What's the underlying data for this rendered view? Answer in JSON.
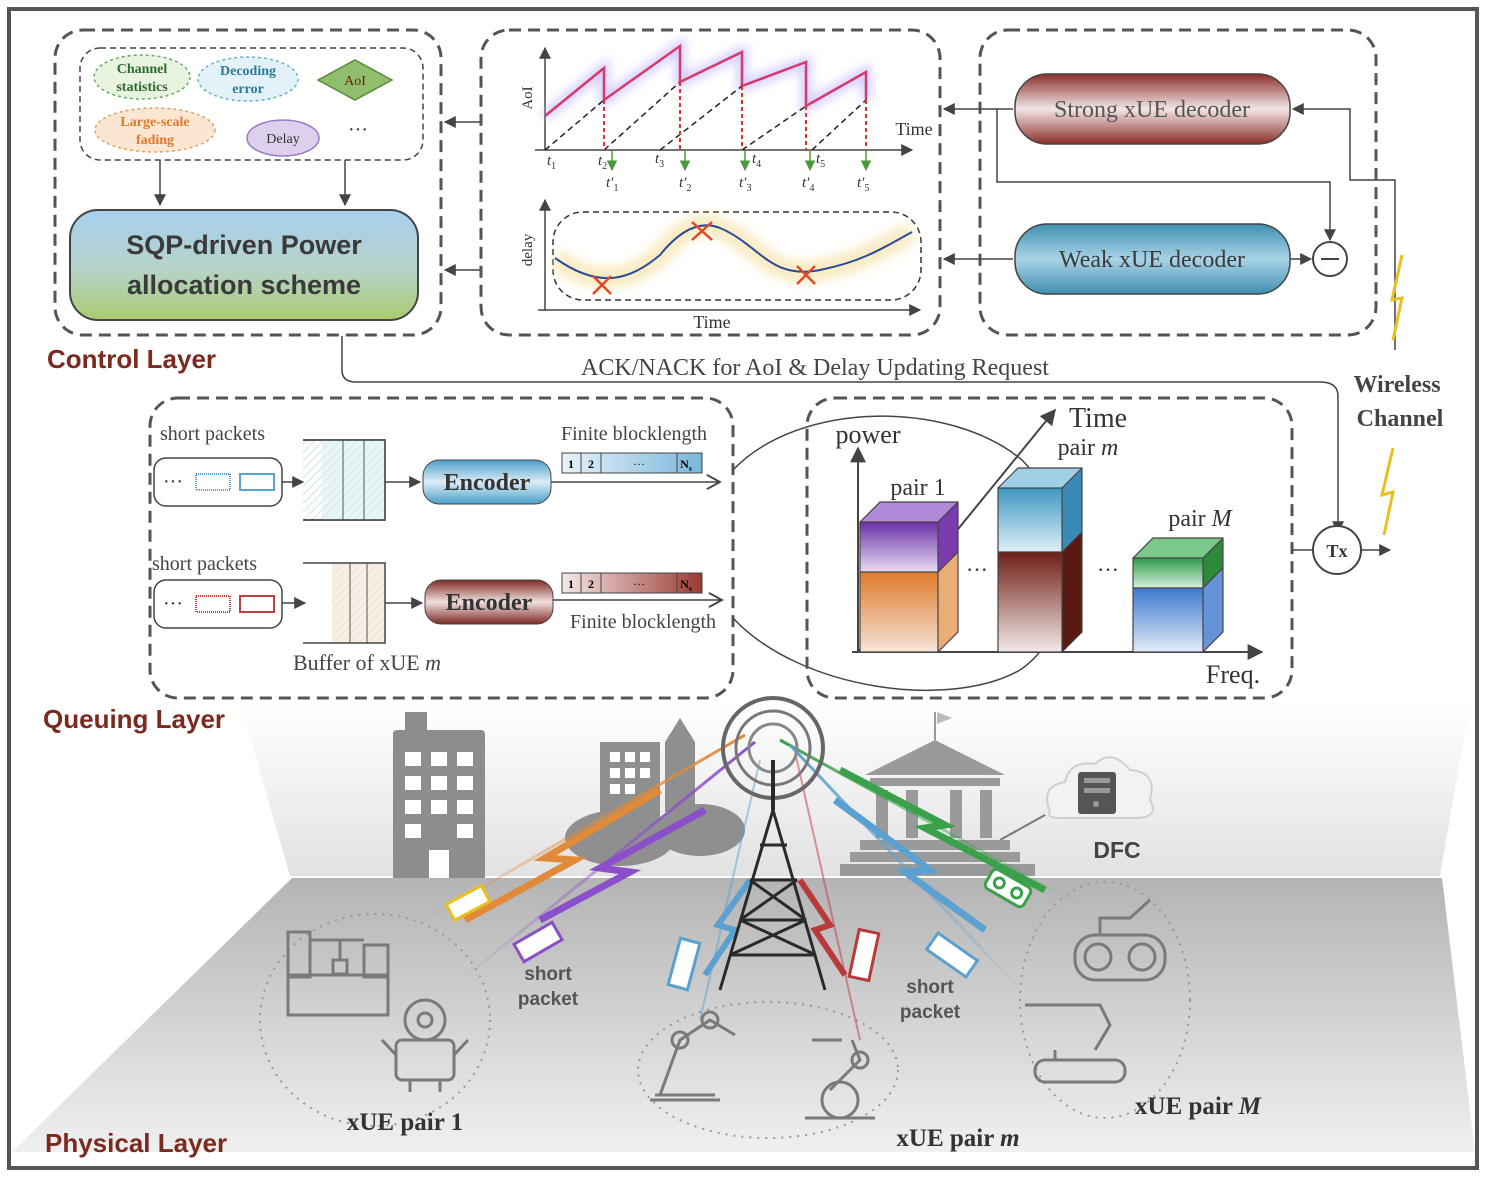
{
  "layers": {
    "control": "Control Layer",
    "queuing": "Queuing Layer",
    "physical": "Physical Layer"
  },
  "control": {
    "factors": {
      "channel_statistics": [
        "Channel",
        "statistics"
      ],
      "decoding_error": [
        "Decoding",
        "error"
      ],
      "aoi": "AoI",
      "large_scale_fading": [
        "Large-scale",
        "fading"
      ],
      "delay": "Delay",
      "ellipsis": "···"
    },
    "sqp_scheme": [
      "SQP-driven Power",
      "allocation scheme"
    ],
    "aoi_plot": {
      "ylabel": "AoI",
      "xlabel": "Time",
      "t_labels": [
        "t",
        "t",
        "t",
        "t",
        "t"
      ],
      "t_subs": [
        "1",
        "2",
        "3",
        "4",
        "5"
      ],
      "tprime_labels": [
        "t′",
        "t′",
        "t′",
        "t′",
        "t′"
      ],
      "tprime_subs": [
        "1",
        "2",
        "3",
        "4",
        "5"
      ]
    },
    "delay_plot": {
      "ylabel": "delay",
      "xlabel": "Time"
    },
    "strong_decoder": "Strong xUE decoder",
    "weak_decoder": "Weak xUE decoder",
    "ack_label": "ACK/NACK for AoI & Delay Updating Request",
    "wireless_channel": [
      "Wireless",
      "Channel"
    ]
  },
  "queuing": {
    "short_packets_top": "short packets",
    "short_packets_bottom": "short packets",
    "encoder_top": "Encoder",
    "encoder_bottom": "Encoder",
    "finite_blocklength_top": "Finite blocklength",
    "finite_blocklength_bottom": "Finite blocklength",
    "block_cells": [
      "1",
      "2",
      "···",
      "N"
    ],
    "block_sub": "s",
    "buffer_label": "Buffer of xUE ",
    "buffer_var": "m",
    "resource": {
      "power": "power",
      "time": "Time",
      "freq": "Freq.",
      "pair1": "pair 1",
      "pair_m": "pair ",
      "pair_m_var": "m",
      "pair_M": "pair ",
      "pair_M_var": "M",
      "dots": "···"
    },
    "tx": "Tx"
  },
  "physical": {
    "dfc": "DFC",
    "short_packet_left": [
      "short",
      "packet"
    ],
    "short_packet_right": [
      "short",
      "packet"
    ],
    "pair1": "xUE pair 1",
    "pair_m": "xUE pair ",
    "pair_m_var": "m",
    "pair_M": "xUE pair ",
    "pair_M_var": "M"
  },
  "colors": {
    "layer_title": "#7a2a1e",
    "orange": "#e08a3a",
    "purple": "#8a4fc9",
    "blue": "#5aa0d0",
    "red": "#b83a3a",
    "green": "#3aa04a",
    "yellow": "#e8c020"
  }
}
